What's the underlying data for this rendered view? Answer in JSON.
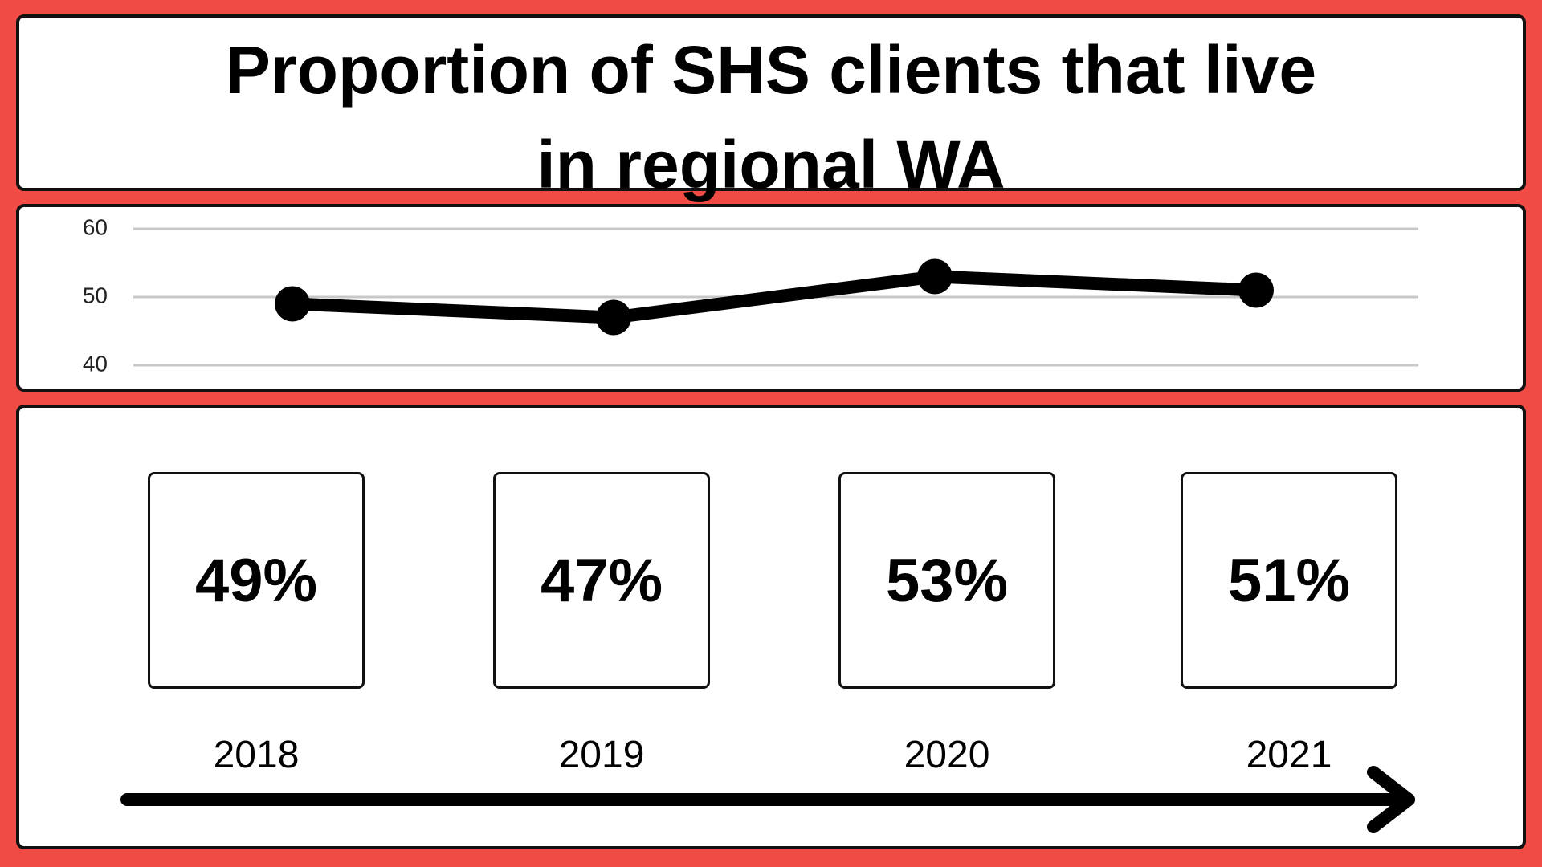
{
  "title_line1": "Proportion of SHS clients that live",
  "title_line2": "in regional WA",
  "colors": {
    "background": "#f04c45",
    "panel": "#ffffff",
    "ink": "#000000",
    "grid": "#c8c8c8"
  },
  "chart_data": {
    "type": "line",
    "title": "Proportion of SHS clients that live in regional WA",
    "xlabel": "",
    "ylabel": "",
    "x": [
      "2018",
      "2019",
      "2020",
      "2021"
    ],
    "series": [
      {
        "values": [
          49,
          47,
          53,
          51
        ]
      }
    ],
    "ylim": [
      40,
      60
    ],
    "yticks": [
      "40",
      "50",
      "60"
    ],
    "grid": true,
    "x_tick_labels_shown": false
  },
  "cards": [
    {
      "year": "2018",
      "value": "49%"
    },
    {
      "year": "2019",
      "value": "47%"
    },
    {
      "year": "2020",
      "value": "53%"
    },
    {
      "year": "2021",
      "value": "51%"
    }
  ],
  "timeline": {
    "direction": "right",
    "icon": "arrow-right-icon"
  }
}
